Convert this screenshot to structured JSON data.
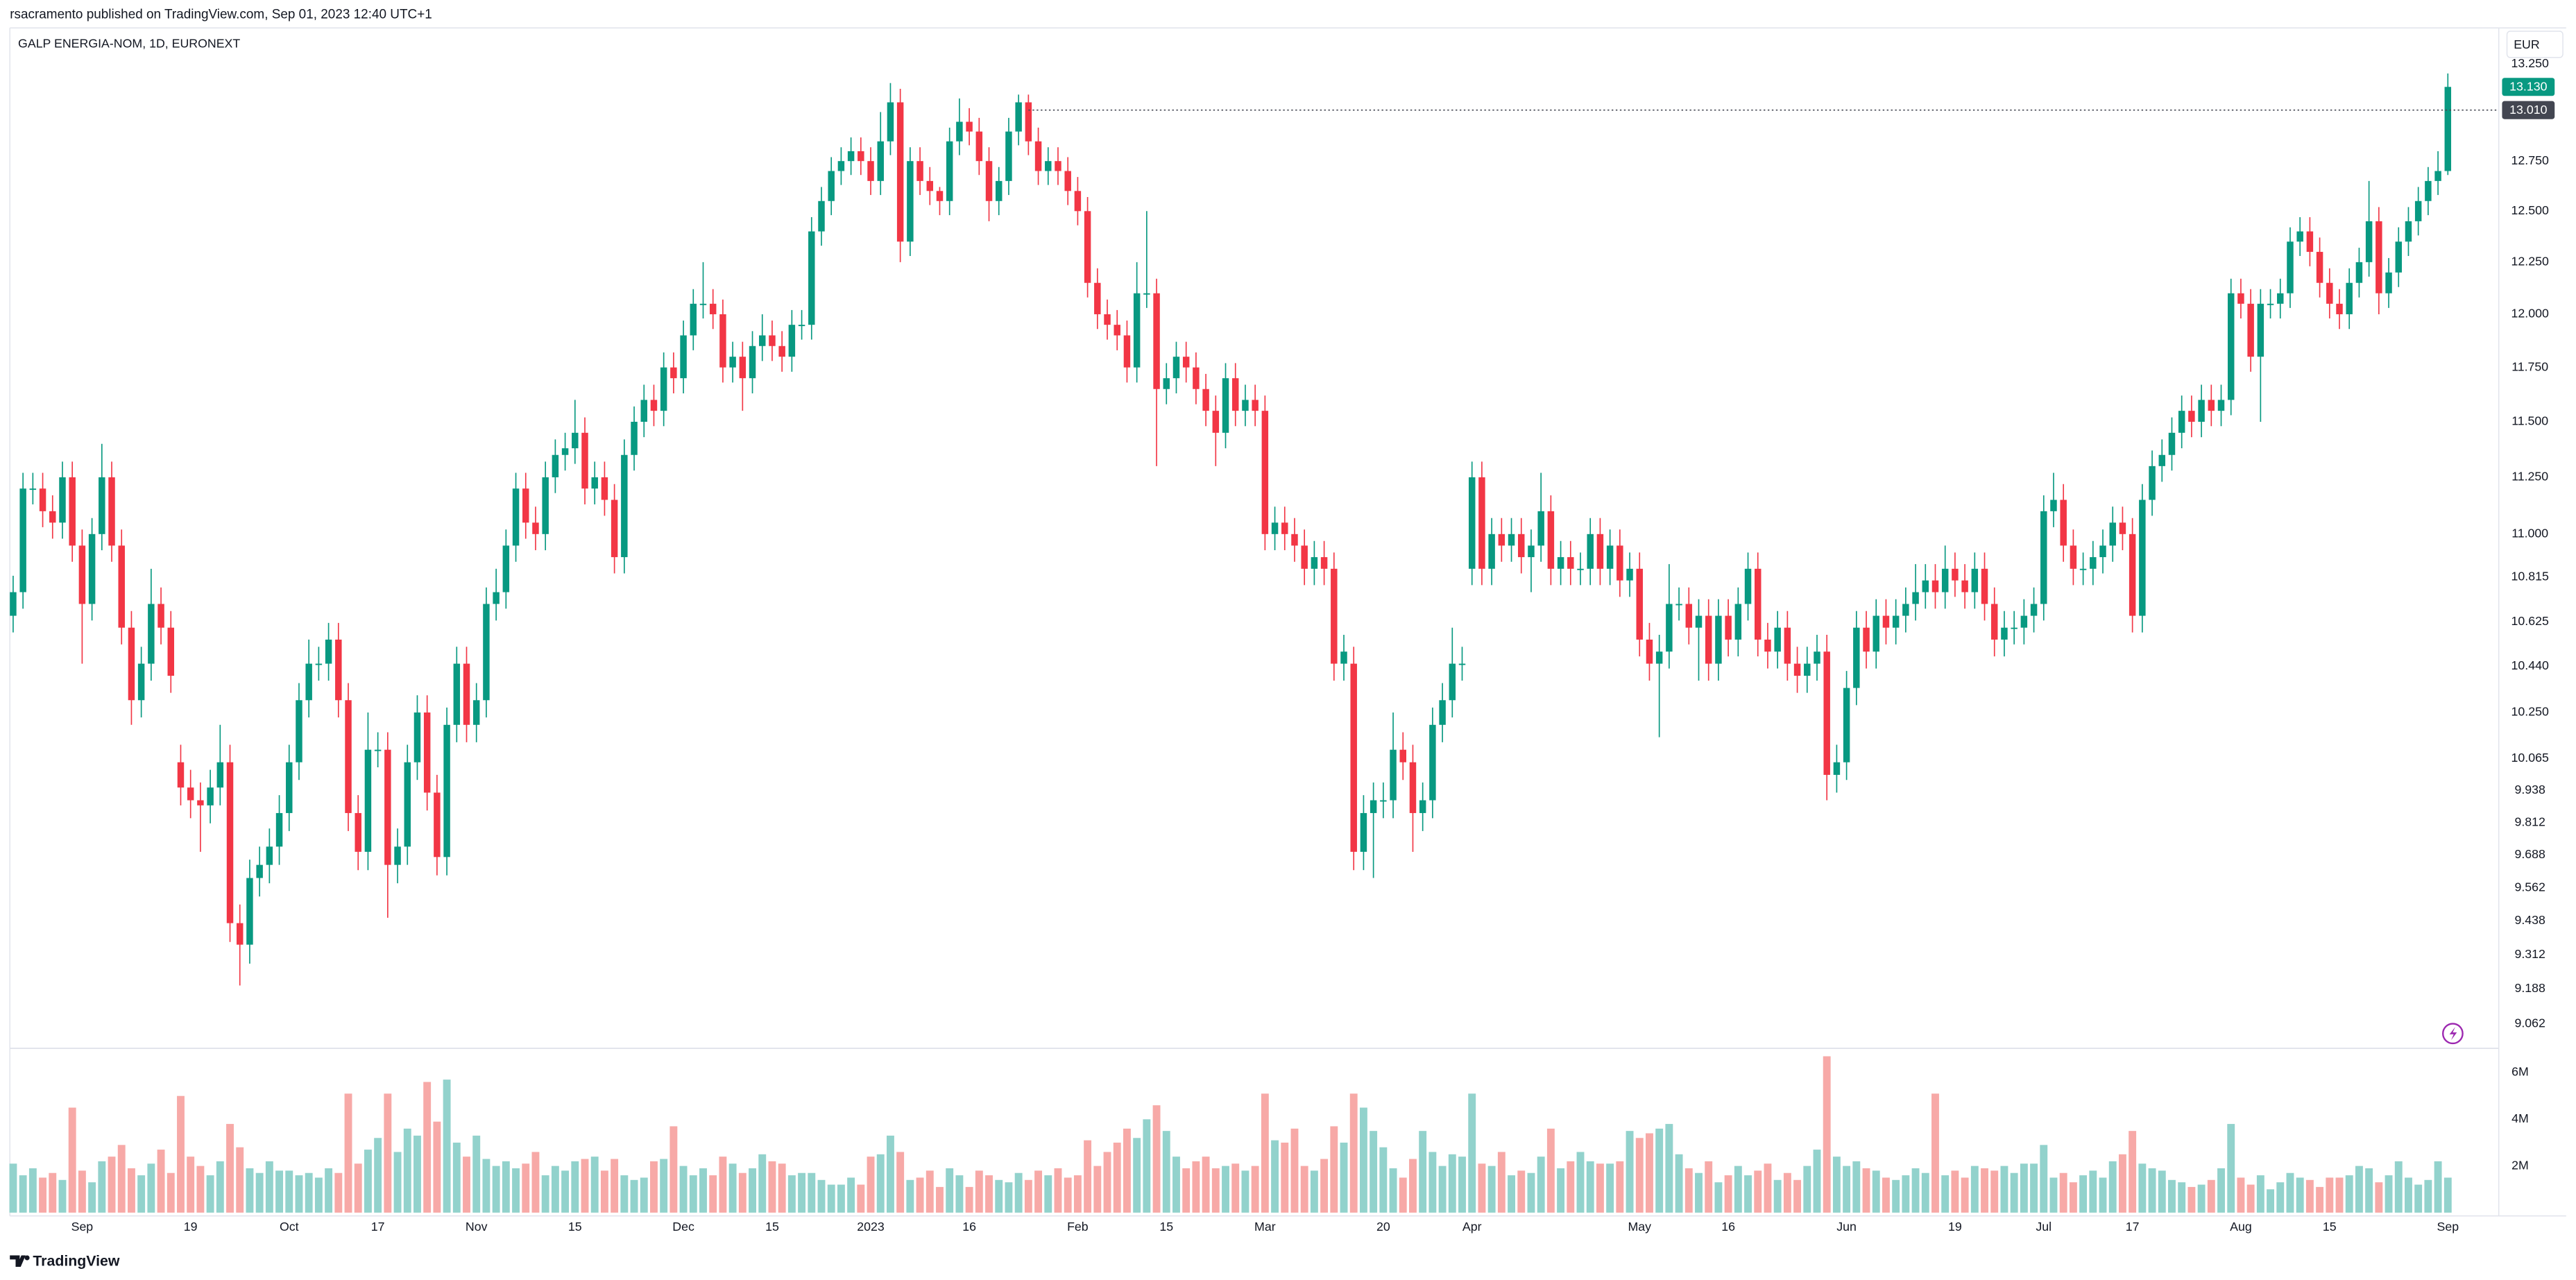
{
  "chart_data": {
    "type": "candlestick",
    "caption": "rsacramento published on TradingView.com, Sep 01, 2023 12:40 UTC+1",
    "title": "GALP ENERGIA-NOM, 1D, EURONEXT",
    "currency": "EUR",
    "brand": "TradingView",
    "log_scale": true,
    "grid": false,
    "up_color": "#089981",
    "down_color": "#f23645",
    "up_volume_color": "#92d2cc",
    "down_volume_color": "#f7a9a7",
    "ylim": [
      8.98,
      13.44
    ],
    "yticks": [
      {
        "value": 13.25,
        "label": "13.250"
      },
      {
        "value": 12.75,
        "label": "12.750"
      },
      {
        "value": 12.5,
        "label": "12.500"
      },
      {
        "value": 12.25,
        "label": "12.250"
      },
      {
        "value": 12.0,
        "label": "12.000"
      },
      {
        "value": 11.75,
        "label": "11.750"
      },
      {
        "value": 11.5,
        "label": "11.500"
      },
      {
        "value": 11.25,
        "label": "11.250"
      },
      {
        "value": 11.0,
        "label": "11.000"
      },
      {
        "value": 10.815,
        "label": "10.815"
      },
      {
        "value": 10.625,
        "label": "10.625"
      },
      {
        "value": 10.44,
        "label": "10.440"
      },
      {
        "value": 10.25,
        "label": "10.250"
      },
      {
        "value": 10.065,
        "label": "10.065"
      },
      {
        "value": 9.938,
        "label": "9.938"
      },
      {
        "value": 9.812,
        "label": "9.812"
      },
      {
        "value": 9.688,
        "label": "9.688"
      },
      {
        "value": 9.562,
        "label": "9.562"
      },
      {
        "value": 9.438,
        "label": "9.438"
      },
      {
        "value": 9.312,
        "label": "9.312"
      },
      {
        "value": 9.188,
        "label": "9.188"
      },
      {
        "value": 9.062,
        "label": "9.062"
      }
    ],
    "volume_lim": [
      0,
      6.9
    ],
    "volume_ticks": [
      {
        "value": 6,
        "label": "6M"
      },
      {
        "value": 4,
        "label": "4M"
      },
      {
        "value": 2,
        "label": "2M"
      }
    ],
    "xticks": [
      {
        "value": 7,
        "label": "Sep"
      },
      {
        "value": 18,
        "label": "19"
      },
      {
        "value": 28,
        "label": "Oct"
      },
      {
        "value": 37,
        "label": "17"
      },
      {
        "value": 47,
        "label": "Nov"
      },
      {
        "value": 57,
        "label": "15"
      },
      {
        "value": 68,
        "label": "Dec"
      },
      {
        "value": 77,
        "label": "15"
      },
      {
        "value": 87,
        "label": "2023"
      },
      {
        "value": 97,
        "label": "16"
      },
      {
        "value": 108,
        "label": "Feb"
      },
      {
        "value": 117,
        "label": "15"
      },
      {
        "value": 127,
        "label": "Mar"
      },
      {
        "value": 139,
        "label": "20"
      },
      {
        "value": 148,
        "label": "Apr"
      },
      {
        "value": 165,
        "label": "May"
      },
      {
        "value": 174,
        "label": "16"
      },
      {
        "value": 186,
        "label": "Jun"
      },
      {
        "value": 197,
        "label": "19"
      },
      {
        "value": 206,
        "label": "Jul"
      },
      {
        "value": 215,
        "label": "17"
      },
      {
        "value": 226,
        "label": "Aug"
      },
      {
        "value": 235,
        "label": "15"
      },
      {
        "value": 247,
        "label": "Sep"
      }
    ],
    "price_lines": [
      {
        "value": 13.13,
        "label": "13.130",
        "color": "#089981"
      },
      {
        "value": 13.01,
        "label": "13.010",
        "color": "#434651",
        "dotted": true
      }
    ],
    "open": [
      10.65,
      10.75,
      11.2,
      11.2,
      11.1,
      11.05,
      11.25,
      10.95,
      10.7,
      11.0,
      11.25,
      10.95,
      10.6,
      10.3,
      10.45,
      10.7,
      10.6,
      10.05,
      9.95,
      9.9,
      9.88,
      9.95,
      10.05,
      9.43,
      9.35,
      9.6,
      9.65,
      9.72,
      9.85,
      10.05,
      10.3,
      10.45,
      10.45,
      10.55,
      10.3,
      9.85,
      9.7,
      10.1,
      10.1,
      9.65,
      9.72,
      10.05,
      10.25,
      9.93,
      9.68,
      10.2,
      10.45,
      10.2,
      10.3,
      10.7,
      10.75,
      10.95,
      11.2,
      11.05,
      11.0,
      11.25,
      11.35,
      11.38,
      11.45,
      11.2,
      11.25,
      11.15,
      10.9,
      11.35,
      11.5,
      11.6,
      11.55,
      11.75,
      11.7,
      11.9,
      12.05,
      12.05,
      12.0,
      11.75,
      11.8,
      11.7,
      11.85,
      11.9,
      11.85,
      11.8,
      11.95,
      11.95,
      12.4,
      12.55,
      12.7,
      12.75,
      12.8,
      12.75,
      12.65,
      12.85,
      13.05,
      12.35,
      12.75,
      12.65,
      12.6,
      12.55,
      12.85,
      12.95,
      12.9,
      12.75,
      12.55,
      12.65,
      12.9,
      13.05,
      12.85,
      12.7,
      12.75,
      12.7,
      12.6,
      12.5,
      12.15,
      12.0,
      11.95,
      11.9,
      11.75,
      12.1,
      12.1,
      11.65,
      11.7,
      11.8,
      11.75,
      11.65,
      11.55,
      11.45,
      11.7,
      11.55,
      11.6,
      11.55,
      11.0,
      11.05,
      11.0,
      10.95,
      10.85,
      10.9,
      10.85,
      10.45,
      10.45,
      9.7,
      9.85,
      9.9,
      9.9,
      10.1,
      10.05,
      9.85,
      9.9,
      10.2,
      10.3,
      10.45,
      10.85,
      11.25,
      10.85,
      11.0,
      10.95,
      11.0,
      10.9,
      10.95,
      11.1,
      10.85,
      10.9,
      10.85,
      10.85,
      11.0,
      10.85,
      10.95,
      10.8,
      10.85,
      10.55,
      10.45,
      10.5,
      10.7,
      10.7,
      10.6,
      10.65,
      10.45,
      10.65,
      10.55,
      10.7,
      10.85,
      10.55,
      10.5,
      10.6,
      10.45,
      10.4,
      10.45,
      10.5,
      10.0,
      10.05,
      10.35,
      10.6,
      10.5,
      10.65,
      10.6,
      10.65,
      10.7,
      10.75,
      10.8,
      10.75,
      10.85,
      10.8,
      10.75,
      10.85,
      10.7,
      10.55,
      10.6,
      10.6,
      10.65,
      10.7,
      11.1,
      11.15,
      10.95,
      10.85,
      10.85,
      10.9,
      10.95,
      11.05,
      11.0,
      10.65,
      11.15,
      11.3,
      11.35,
      11.45,
      11.55,
      11.5,
      11.6,
      11.55,
      11.6,
      12.1,
      12.05,
      11.8,
      12.05,
      12.05,
      12.1,
      12.35,
      12.4,
      12.3,
      12.15,
      12.05,
      12.0,
      12.15,
      12.25,
      12.45,
      12.1,
      12.2,
      12.35,
      12.45,
      12.55,
      12.65,
      12.7
    ],
    "high": [
      10.82,
      11.27,
      11.27,
      11.27,
      11.17,
      11.32,
      11.32,
      11.02,
      11.07,
      11.4,
      11.32,
      11.02,
      10.67,
      10.52,
      10.85,
      10.77,
      10.67,
      10.12,
      10.02,
      9.97,
      10.02,
      10.2,
      10.12,
      9.5,
      9.67,
      9.72,
      9.79,
      9.92,
      10.12,
      10.37,
      10.55,
      10.52,
      10.62,
      10.62,
      10.37,
      9.92,
      10.25,
      10.17,
      10.17,
      9.79,
      10.12,
      10.32,
      10.32,
      10.0,
      10.27,
      10.52,
      10.52,
      10.37,
      10.77,
      10.85,
      11.02,
      11.27,
      11.27,
      11.12,
      11.32,
      11.42,
      11.45,
      11.6,
      11.52,
      11.32,
      11.32,
      11.22,
      11.42,
      11.57,
      11.67,
      11.67,
      11.82,
      11.82,
      11.97,
      12.12,
      12.25,
      12.12,
      12.07,
      11.87,
      11.87,
      11.92,
      12.0,
      11.97,
      11.92,
      12.02,
      12.02,
      12.47,
      12.62,
      12.77,
      12.82,
      12.87,
      12.87,
      12.82,
      13.0,
      13.15,
      13.12,
      12.82,
      12.82,
      12.72,
      12.62,
      12.92,
      13.07,
      13.02,
      12.97,
      12.82,
      12.72,
      12.97,
      13.09,
      13.09,
      12.92,
      12.82,
      12.82,
      12.77,
      12.67,
      12.57,
      12.22,
      12.07,
      12.02,
      11.97,
      12.25,
      12.5,
      12.17,
      11.77,
      11.87,
      11.87,
      11.82,
      11.72,
      11.62,
      11.77,
      11.77,
      11.67,
      11.67,
      11.62,
      11.12,
      11.12,
      11.07,
      11.02,
      10.97,
      10.97,
      10.92,
      10.57,
      10.52,
      9.92,
      9.97,
      9.97,
      10.25,
      10.17,
      10.12,
      9.97,
      10.27,
      10.37,
      10.6,
      10.52,
      11.32,
      11.32,
      11.07,
      11.07,
      11.07,
      11.07,
      11.02,
      11.27,
      11.17,
      10.97,
      10.97,
      10.92,
      11.07,
      11.07,
      11.02,
      11.02,
      10.92,
      10.92,
      10.62,
      10.57,
      10.87,
      10.77,
      10.77,
      10.72,
      10.72,
      10.72,
      10.72,
      10.77,
      10.92,
      10.92,
      10.62,
      10.67,
      10.67,
      10.52,
      10.52,
      10.57,
      10.57,
      10.12,
      10.42,
      10.67,
      10.67,
      10.72,
      10.72,
      10.72,
      10.77,
      10.87,
      10.87,
      10.87,
      10.95,
      10.92,
      10.87,
      10.92,
      10.92,
      10.77,
      10.67,
      10.67,
      10.72,
      10.77,
      11.17,
      11.27,
      11.22,
      11.02,
      10.92,
      10.97,
      11.02,
      11.12,
      11.12,
      11.07,
      11.22,
      11.37,
      11.42,
      11.52,
      11.62,
      11.62,
      11.67,
      11.67,
      11.67,
      12.17,
      12.17,
      12.12,
      12.12,
      12.12,
      12.17,
      12.42,
      12.47,
      12.47,
      12.37,
      12.22,
      12.12,
      12.22,
      12.32,
      12.65,
      12.52,
      12.27,
      12.42,
      12.52,
      12.62,
      12.72,
      12.8,
      13.2
    ],
    "low": [
      10.58,
      10.68,
      11.13,
      11.03,
      10.98,
      10.98,
      10.88,
      10.45,
      10.63,
      10.93,
      10.88,
      10.53,
      10.2,
      10.23,
      10.38,
      10.53,
      10.33,
      9.88,
      9.83,
      9.7,
      9.81,
      9.88,
      9.36,
      9.2,
      9.28,
      9.53,
      9.58,
      9.65,
      9.78,
      9.98,
      10.23,
      10.38,
      10.38,
      10.23,
      9.78,
      9.63,
      9.63,
      10.03,
      9.45,
      9.58,
      9.65,
      9.98,
      9.86,
      9.61,
      9.61,
      10.13,
      10.13,
      10.13,
      10.23,
      10.63,
      10.68,
      10.88,
      10.98,
      10.93,
      10.93,
      11.18,
      11.28,
      11.31,
      11.13,
      11.13,
      11.08,
      10.83,
      10.83,
      11.28,
      11.43,
      11.48,
      11.48,
      11.63,
      11.63,
      11.83,
      11.98,
      11.93,
      11.68,
      11.68,
      11.55,
      11.63,
      11.78,
      11.78,
      11.73,
      11.73,
      11.88,
      11.88,
      12.33,
      12.48,
      12.63,
      12.68,
      12.68,
      12.58,
      12.58,
      12.78,
      12.25,
      12.28,
      12.58,
      12.53,
      12.48,
      12.48,
      12.78,
      12.83,
      12.68,
      12.45,
      12.48,
      12.58,
      12.83,
      12.78,
      12.63,
      12.63,
      12.63,
      12.53,
      12.43,
      12.08,
      11.93,
      11.88,
      11.83,
      11.68,
      11.68,
      12.03,
      11.3,
      11.58,
      11.63,
      11.68,
      11.58,
      11.48,
      11.3,
      11.38,
      11.48,
      11.48,
      11.48,
      10.93,
      10.93,
      10.93,
      10.88,
      10.78,
      10.78,
      10.78,
      10.38,
      10.38,
      9.63,
      9.63,
      9.6,
      9.83,
      9.83,
      9.98,
      9.7,
      9.78,
      9.83,
      10.13,
      10.23,
      10.38,
      10.78,
      10.78,
      10.78,
      10.88,
      10.88,
      10.83,
      10.75,
      10.88,
      10.78,
      10.78,
      10.78,
      10.78,
      10.78,
      10.78,
      10.78,
      10.73,
      10.73,
      10.48,
      10.38,
      10.15,
      10.43,
      10.63,
      10.53,
      10.38,
      10.38,
      10.38,
      10.48,
      10.48,
      10.63,
      10.48,
      10.43,
      10.43,
      10.38,
      10.33,
      10.33,
      10.38,
      9.9,
      9.93,
      9.98,
      10.28,
      10.43,
      10.43,
      10.53,
      10.53,
      10.58,
      10.63,
      10.68,
      10.68,
      10.68,
      10.73,
      10.68,
      10.68,
      10.63,
      10.48,
      10.48,
      10.53,
      10.53,
      10.58,
      10.63,
      11.03,
      10.88,
      10.78,
      10.78,
      10.78,
      10.83,
      10.88,
      10.93,
      10.58,
      10.58,
      11.08,
      11.23,
      11.28,
      11.38,
      11.43,
      11.43,
      11.48,
      11.48,
      11.53,
      11.98,
      11.73,
      11.5,
      11.98,
      11.98,
      12.03,
      12.28,
      12.23,
      12.08,
      11.98,
      11.93,
      11.93,
      12.08,
      12.18,
      12.0,
      12.03,
      12.13,
      12.28,
      12.38,
      12.48,
      12.58,
      12.68
    ],
    "close": [
      10.75,
      11.2,
      11.2,
      11.1,
      11.05,
      11.25,
      10.95,
      10.7,
      11.0,
      11.25,
      10.95,
      10.6,
      10.3,
      10.45,
      10.7,
      10.6,
      10.4,
      9.95,
      9.9,
      9.88,
      9.95,
      10.05,
      9.43,
      9.35,
      9.6,
      9.65,
      9.72,
      9.85,
      10.05,
      10.3,
      10.45,
      10.45,
      10.55,
      10.3,
      9.85,
      9.7,
      10.1,
      10.1,
      9.65,
      9.72,
      10.05,
      10.25,
      9.93,
      9.68,
      10.2,
      10.45,
      10.2,
      10.3,
      10.7,
      10.75,
      10.95,
      11.2,
      11.05,
      11.0,
      11.25,
      11.35,
      11.38,
      11.45,
      11.2,
      11.25,
      11.15,
      10.9,
      11.35,
      11.5,
      11.6,
      11.55,
      11.75,
      11.7,
      11.9,
      12.05,
      12.05,
      12.0,
      11.75,
      11.8,
      11.7,
      11.85,
      11.9,
      11.85,
      11.8,
      11.95,
      11.95,
      12.4,
      12.55,
      12.7,
      12.75,
      12.8,
      12.75,
      12.65,
      12.85,
      13.05,
      12.35,
      12.75,
      12.65,
      12.6,
      12.55,
      12.85,
      12.95,
      12.9,
      12.75,
      12.55,
      12.65,
      12.9,
      13.05,
      12.85,
      12.7,
      12.75,
      12.7,
      12.6,
      12.5,
      12.15,
      12.0,
      11.95,
      11.9,
      11.75,
      12.1,
      12.1,
      11.65,
      11.7,
      11.8,
      11.75,
      11.65,
      11.55,
      11.45,
      11.7,
      11.55,
      11.6,
      11.55,
      11.0,
      11.05,
      11.0,
      10.95,
      10.85,
      10.9,
      10.85,
      10.45,
      10.5,
      9.7,
      9.85,
      9.9,
      9.9,
      10.1,
      10.05,
      9.85,
      9.9,
      10.2,
      10.3,
      10.45,
      10.45,
      11.25,
      10.85,
      11.0,
      10.95,
      11.0,
      10.9,
      10.95,
      11.1,
      10.85,
      10.9,
      10.85,
      10.85,
      11.0,
      10.85,
      10.95,
      10.8,
      10.85,
      10.55,
      10.45,
      10.5,
      10.7,
      10.7,
      10.6,
      10.65,
      10.45,
      10.65,
      10.55,
      10.7,
      10.85,
      10.55,
      10.5,
      10.6,
      10.45,
      10.4,
      10.45,
      10.5,
      10.0,
      10.05,
      10.35,
      10.6,
      10.5,
      10.65,
      10.6,
      10.65,
      10.7,
      10.75,
      10.8,
      10.75,
      10.85,
      10.8,
      10.75,
      10.85,
      10.7,
      10.55,
      10.6,
      10.6,
      10.65,
      10.7,
      11.1,
      11.15,
      10.95,
      10.85,
      10.85,
      10.9,
      10.95,
      11.05,
      11.0,
      10.65,
      11.15,
      11.3,
      11.35,
      11.45,
      11.55,
      11.5,
      11.6,
      11.55,
      11.6,
      12.1,
      12.05,
      11.8,
      12.05,
      12.05,
      12.1,
      12.35,
      12.4,
      12.3,
      12.15,
      12.05,
      12.0,
      12.15,
      12.25,
      12.45,
      12.1,
      12.2,
      12.35,
      12.45,
      12.55,
      12.65,
      12.7,
      13.13
    ],
    "volume": [
      2.1,
      1.6,
      1.9,
      1.5,
      1.7,
      1.4,
      4.5,
      1.8,
      1.3,
      2.2,
      2.4,
      2.9,
      1.9,
      1.6,
      2.1,
      2.7,
      1.7,
      5.0,
      2.4,
      2.0,
      1.6,
      2.2,
      3.8,
      2.8,
      1.9,
      1.7,
      2.2,
      1.8,
      1.8,
      1.6,
      1.7,
      1.5,
      1.9,
      1.7,
      5.1,
      2.1,
      2.7,
      3.2,
      5.1,
      2.6,
      3.6,
      3.3,
      5.6,
      3.9,
      5.7,
      3.0,
      2.4,
      3.3,
      2.3,
      2.0,
      2.2,
      1.9,
      2.1,
      2.6,
      1.6,
      2.0,
      1.8,
      2.2,
      2.3,
      2.4,
      1.8,
      2.3,
      1.6,
      1.4,
      1.5,
      2.2,
      2.3,
      3.7,
      2.0,
      1.6,
      1.9,
      1.6,
      2.4,
      2.1,
      1.7,
      1.9,
      2.5,
      2.2,
      2.1,
      1.6,
      1.7,
      1.7,
      1.4,
      1.2,
      1.2,
      1.5,
      1.2,
      2.4,
      2.5,
      3.3,
      2.6,
      1.4,
      1.5,
      1.8,
      1.1,
      1.9,
      1.6,
      1.1,
      1.8,
      1.6,
      1.4,
      1.3,
      1.7,
      1.4,
      1.8,
      1.6,
      1.9,
      1.5,
      1.6,
      3.1,
      2.0,
      2.6,
      3.0,
      3.6,
      3.2,
      4.0,
      4.6,
      3.5,
      2.4,
      1.9,
      2.2,
      2.4,
      1.9,
      2.0,
      2.1,
      1.8,
      2.0,
      5.1,
      3.1,
      3.0,
      3.6,
      2.0,
      1.8,
      2.3,
      3.7,
      3.0,
      5.1,
      4.5,
      3.5,
      2.8,
      1.9,
      1.5,
      2.3,
      3.5,
      2.6,
      2.0,
      2.5,
      2.4,
      5.1,
      2.1,
      2.0,
      2.6,
      1.6,
      1.8,
      1.7,
      2.4,
      3.6,
      1.9,
      2.2,
      2.6,
      2.2,
      2.1,
      2.1,
      2.2,
      3.5,
      3.2,
      3.4,
      3.6,
      3.8,
      2.5,
      1.9,
      1.7,
      2.2,
      1.3,
      1.6,
      2.0,
      1.6,
      1.8,
      2.1,
      1.4,
      1.7,
      1.4,
      2.0,
      2.7,
      6.7,
      2.4,
      2.0,
      2.2,
      1.9,
      1.8,
      1.5,
      1.4,
      1.6,
      1.9,
      1.7,
      5.1,
      1.6,
      1.8,
      1.5,
      2.0,
      1.9,
      1.8,
      2.0,
      1.7,
      2.1,
      2.1,
      2.9,
      1.5,
      1.7,
      1.3,
      1.6,
      1.8,
      1.5,
      2.2,
      2.5,
      3.5,
      2.1,
      1.9,
      1.8,
      1.4,
      1.3,
      1.1,
      1.2,
      1.4,
      1.9,
      3.8,
      1.5,
      1.2,
      1.6,
      1.0,
      1.3,
      1.7,
      1.5,
      1.4,
      1.1,
      1.5,
      1.5,
      1.6,
      2.0,
      1.9,
      1.3,
      1.6,
      2.2,
      1.5,
      1.2,
      1.4,
      2.2,
      1.5
    ]
  }
}
